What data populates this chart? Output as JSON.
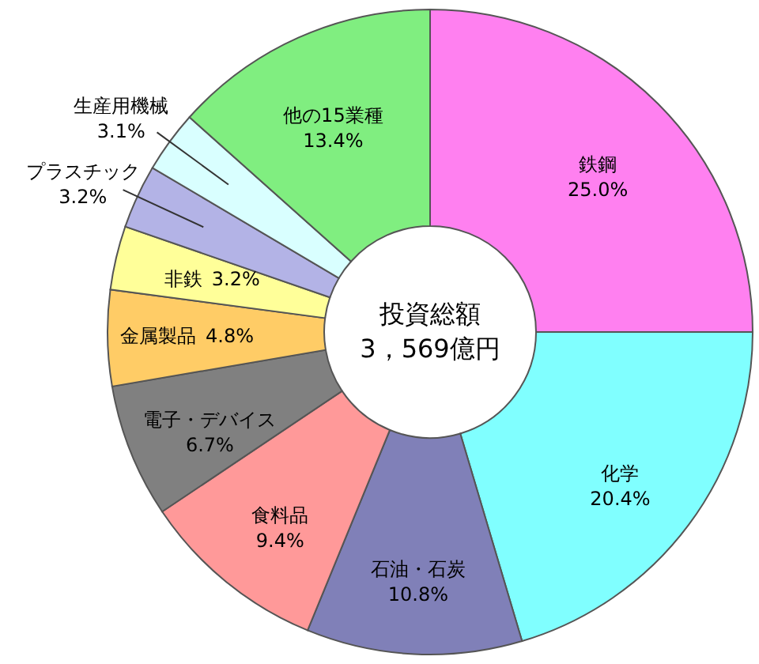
{
  "chart_data": {
    "type": "donut",
    "categories": [
      "鉄鋼",
      "化学",
      "石油・石炭",
      "食料品",
      "電子・デバイス",
      "金属製品",
      "非鉄",
      "プラスチック",
      "生産用機械",
      "他の15業種"
    ],
    "values": [
      25.0,
      20.4,
      10.8,
      9.4,
      6.7,
      4.8,
      3.2,
      3.2,
      3.1,
      13.4
    ],
    "colors": [
      "#ff80f0",
      "#80ffff",
      "#8080b8",
      "#ff9999",
      "#808080",
      "#ffcc66",
      "#ffff99",
      "#b3b3e6",
      "#d9ffff",
      "#80ee80"
    ],
    "value_labels": [
      "25.0%",
      "20.4%",
      "10.8%",
      "9.4%",
      "6.7%",
      "4.8%",
      "3.2%",
      "3.2%",
      "3.1%",
      "13.4%"
    ],
    "annotations": [
      "投資総額",
      "3，569億円"
    ]
  }
}
